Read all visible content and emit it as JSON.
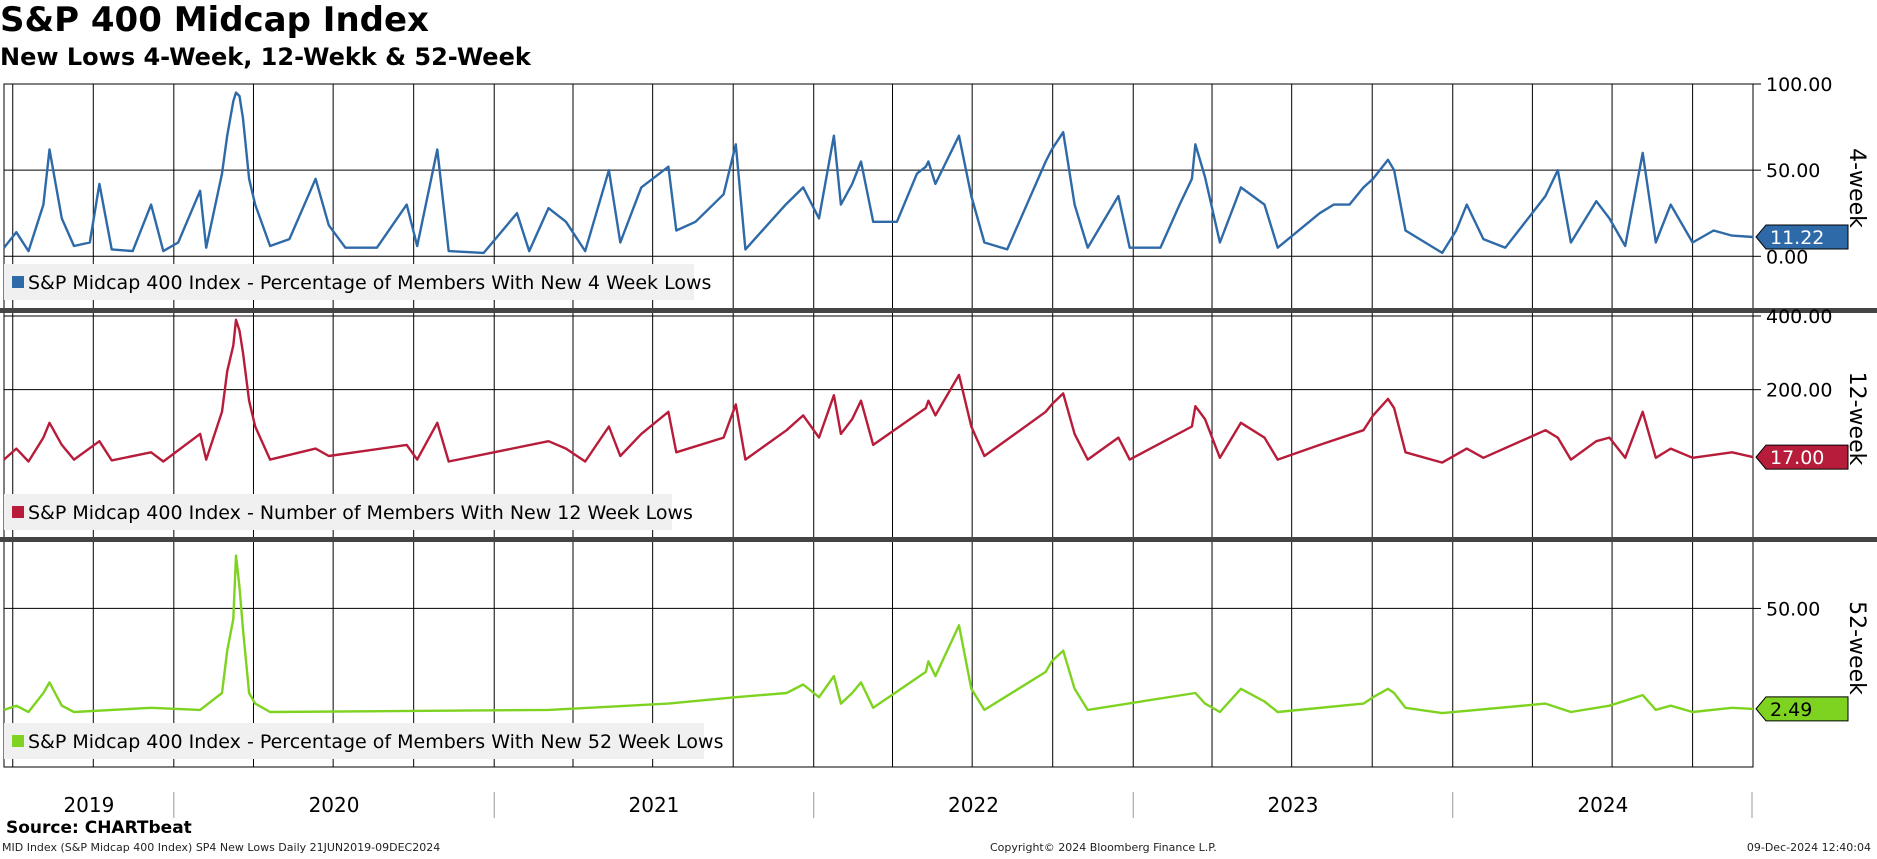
{
  "title": "S&P 400 Midcap Index",
  "subtitle": "New Lows 4-Week, 12-Wekk & 52-Week",
  "footer": {
    "source": "Source: CHARTbeat",
    "description": "MID Index (S&P Midcap 400 Index) SP4 New Lows  Daily 21JUN2019-09DEC2024",
    "copyright": "Copyright© 2024 Bloomberg Finance L.P.",
    "timestamp": "09-Dec-2024 12:40:04"
  },
  "chart_data": {
    "type": "line",
    "x_domain": [
      "2019-06-21",
      "2024-12-09"
    ],
    "year_labels": [
      "2019",
      "2020",
      "2021",
      "2022",
      "2023",
      "2024"
    ],
    "panels": [
      {
        "name": "4-week",
        "axis_title": "4-week",
        "legend": "S&P Midcap 400 Index  - Percentage of Members With New 4 Week Lows",
        "color": "#2e6aa8",
        "ylim": [
          -30,
          100
        ],
        "ticks": [
          {
            "v": 100,
            "label": "100.00"
          },
          {
            "v": 50,
            "label": "50.00"
          },
          {
            "v": 0,
            "label": "0.00"
          }
        ],
        "last_value": 11.22,
        "last_label": "11.22",
        "points": [
          [
            "2019-06-21",
            5
          ],
          [
            "2019-07-05",
            14
          ],
          [
            "2019-07-19",
            3
          ],
          [
            "2019-08-05",
            30
          ],
          [
            "2019-08-12",
            62
          ],
          [
            "2019-08-26",
            22
          ],
          [
            "2019-09-09",
            6
          ],
          [
            "2019-09-27",
            8
          ],
          [
            "2019-10-08",
            42
          ],
          [
            "2019-10-22",
            4
          ],
          [
            "2019-11-15",
            3
          ],
          [
            "2019-12-06",
            30
          ],
          [
            "2019-12-20",
            3
          ],
          [
            "2020-01-06",
            8
          ],
          [
            "2020-01-31",
            38
          ],
          [
            "2020-02-07",
            5
          ],
          [
            "2020-02-25",
            48
          ],
          [
            "2020-03-02",
            70
          ],
          [
            "2020-03-09",
            90
          ],
          [
            "2020-03-12",
            95
          ],
          [
            "2020-03-16",
            93
          ],
          [
            "2020-03-20",
            80
          ],
          [
            "2020-03-27",
            45
          ],
          [
            "2020-04-03",
            30
          ],
          [
            "2020-04-20",
            6
          ],
          [
            "2020-05-12",
            10
          ],
          [
            "2020-06-11",
            45
          ],
          [
            "2020-06-26",
            18
          ],
          [
            "2020-07-15",
            5
          ],
          [
            "2020-08-20",
            5
          ],
          [
            "2020-09-23",
            30
          ],
          [
            "2020-10-05",
            6
          ],
          [
            "2020-10-28",
            62
          ],
          [
            "2020-11-10",
            3
          ],
          [
            "2020-12-20",
            2
          ],
          [
            "2021-01-27",
            25
          ],
          [
            "2021-02-10",
            3
          ],
          [
            "2021-03-04",
            28
          ],
          [
            "2021-03-24",
            20
          ],
          [
            "2021-04-15",
            3
          ],
          [
            "2021-05-12",
            50
          ],
          [
            "2021-05-25",
            8
          ],
          [
            "2021-06-18",
            40
          ],
          [
            "2021-07-19",
            52
          ],
          [
            "2021-07-28",
            15
          ],
          [
            "2021-08-19",
            20
          ],
          [
            "2021-09-20",
            36
          ],
          [
            "2021-10-04",
            65
          ],
          [
            "2021-10-15",
            4
          ],
          [
            "2021-11-30",
            30
          ],
          [
            "2021-12-20",
            40
          ],
          [
            "2022-01-07",
            22
          ],
          [
            "2022-01-24",
            70
          ],
          [
            "2022-02-01",
            30
          ],
          [
            "2022-02-14",
            42
          ],
          [
            "2022-02-24",
            55
          ],
          [
            "2022-03-10",
            20
          ],
          [
            "2022-04-06",
            20
          ],
          [
            "2022-04-29",
            48
          ],
          [
            "2022-05-09",
            52
          ],
          [
            "2022-05-12",
            55
          ],
          [
            "2022-05-20",
            42
          ],
          [
            "2022-06-16",
            70
          ],
          [
            "2022-06-30",
            35
          ],
          [
            "2022-07-15",
            8
          ],
          [
            "2022-08-10",
            4
          ],
          [
            "2022-09-23",
            55
          ],
          [
            "2022-09-30",
            62
          ],
          [
            "2022-10-13",
            72
          ],
          [
            "2022-10-26",
            30
          ],
          [
            "2022-11-10",
            5
          ],
          [
            "2022-12-15",
            35
          ],
          [
            "2022-12-28",
            5
          ],
          [
            "2023-02-01",
            5
          ],
          [
            "2023-02-23",
            30
          ],
          [
            "2023-03-09",
            45
          ],
          [
            "2023-03-13",
            65
          ],
          [
            "2023-03-24",
            46
          ],
          [
            "2023-04-10",
            8
          ],
          [
            "2023-05-04",
            40
          ],
          [
            "2023-05-31",
            30
          ],
          [
            "2023-06-15",
            5
          ],
          [
            "2023-08-02",
            25
          ],
          [
            "2023-08-18",
            30
          ],
          [
            "2023-09-05",
            30
          ],
          [
            "2023-09-21",
            40
          ],
          [
            "2023-10-02",
            45
          ],
          [
            "2023-10-19",
            56
          ],
          [
            "2023-10-26",
            50
          ],
          [
            "2023-11-08",
            15
          ],
          [
            "2023-12-20",
            2
          ],
          [
            "2024-01-05",
            15
          ],
          [
            "2024-01-17",
            30
          ],
          [
            "2024-02-05",
            10
          ],
          [
            "2024-03-01",
            5
          ],
          [
            "2024-04-16",
            35
          ],
          [
            "2024-04-30",
            50
          ],
          [
            "2024-05-15",
            8
          ],
          [
            "2024-06-13",
            32
          ],
          [
            "2024-06-28",
            22
          ],
          [
            "2024-07-16",
            6
          ],
          [
            "2024-08-05",
            60
          ],
          [
            "2024-08-20",
            8
          ],
          [
            "2024-09-06",
            30
          ],
          [
            "2024-10-01",
            8
          ],
          [
            "2024-10-25",
            15
          ],
          [
            "2024-11-15",
            12
          ],
          [
            "2024-12-09",
            11.22
          ]
        ]
      },
      {
        "name": "12-week",
        "axis_title": "12-week",
        "legend": "S&P Midcap 400 Index  - Number of Members With New 12 Week Lows",
        "color": "#b71c3a",
        "ylim": [
          -200,
          400
        ],
        "ticks": [
          {
            "v": 400,
            "label": "400.00"
          },
          {
            "v": 200,
            "label": "200.00"
          }
        ],
        "last_value": 17,
        "last_label": "17.00",
        "points": [
          [
            "2019-06-21",
            10
          ],
          [
            "2019-07-05",
            40
          ],
          [
            "2019-07-19",
            5
          ],
          [
            "2019-08-05",
            70
          ],
          [
            "2019-08-12",
            110
          ],
          [
            "2019-08-26",
            50
          ],
          [
            "2019-09-09",
            10
          ],
          [
            "2019-10-08",
            60
          ],
          [
            "2019-10-22",
            8
          ],
          [
            "2019-12-06",
            30
          ],
          [
            "2019-12-20",
            5
          ],
          [
            "2020-01-31",
            80
          ],
          [
            "2020-02-07",
            10
          ],
          [
            "2020-02-25",
            140
          ],
          [
            "2020-03-02",
            250
          ],
          [
            "2020-03-09",
            320
          ],
          [
            "2020-03-12",
            390
          ],
          [
            "2020-03-16",
            360
          ],
          [
            "2020-03-20",
            300
          ],
          [
            "2020-03-27",
            170
          ],
          [
            "2020-04-03",
            100
          ],
          [
            "2020-04-20",
            10
          ],
          [
            "2020-06-11",
            40
          ],
          [
            "2020-06-26",
            20
          ],
          [
            "2020-09-23",
            50
          ],
          [
            "2020-10-05",
            10
          ],
          [
            "2020-10-28",
            110
          ],
          [
            "2020-11-10",
            5
          ],
          [
            "2021-03-04",
            60
          ],
          [
            "2021-03-24",
            40
          ],
          [
            "2021-04-15",
            5
          ],
          [
            "2021-05-12",
            100
          ],
          [
            "2021-05-25",
            20
          ],
          [
            "2021-06-18",
            80
          ],
          [
            "2021-07-19",
            140
          ],
          [
            "2021-07-28",
            30
          ],
          [
            "2021-09-20",
            70
          ],
          [
            "2021-10-04",
            160
          ],
          [
            "2021-10-15",
            10
          ],
          [
            "2021-12-01",
            90
          ],
          [
            "2021-12-20",
            130
          ],
          [
            "2022-01-07",
            70
          ],
          [
            "2022-01-24",
            185
          ],
          [
            "2022-02-01",
            80
          ],
          [
            "2022-02-14",
            120
          ],
          [
            "2022-02-24",
            170
          ],
          [
            "2022-03-10",
            50
          ],
          [
            "2022-05-09",
            150
          ],
          [
            "2022-05-12",
            170
          ],
          [
            "2022-05-20",
            130
          ],
          [
            "2022-06-16",
            240
          ],
          [
            "2022-06-30",
            100
          ],
          [
            "2022-07-15",
            20
          ],
          [
            "2022-09-23",
            140
          ],
          [
            "2022-09-30",
            160
          ],
          [
            "2022-10-13",
            190
          ],
          [
            "2022-10-26",
            80
          ],
          [
            "2022-11-10",
            10
          ],
          [
            "2022-12-15",
            70
          ],
          [
            "2022-12-28",
            10
          ],
          [
            "2023-03-09",
            100
          ],
          [
            "2023-03-13",
            155
          ],
          [
            "2023-03-24",
            120
          ],
          [
            "2023-04-10",
            15
          ],
          [
            "2023-05-04",
            110
          ],
          [
            "2023-05-31",
            70
          ],
          [
            "2023-06-15",
            10
          ],
          [
            "2023-08-02",
            50
          ],
          [
            "2023-09-21",
            90
          ],
          [
            "2023-10-02",
            130
          ],
          [
            "2023-10-19",
            175
          ],
          [
            "2023-10-26",
            150
          ],
          [
            "2023-11-08",
            30
          ],
          [
            "2023-12-20",
            2
          ],
          [
            "2024-01-17",
            40
          ],
          [
            "2024-02-05",
            15
          ],
          [
            "2024-04-16",
            90
          ],
          [
            "2024-04-30",
            70
          ],
          [
            "2024-05-15",
            10
          ],
          [
            "2024-06-13",
            60
          ],
          [
            "2024-06-28",
            70
          ],
          [
            "2024-07-16",
            15
          ],
          [
            "2024-08-05",
            140
          ],
          [
            "2024-08-20",
            15
          ],
          [
            "2024-09-06",
            40
          ],
          [
            "2024-10-01",
            15
          ],
          [
            "2024-11-15",
            30
          ],
          [
            "2024-12-09",
            17
          ]
        ]
      },
      {
        "name": "52-week",
        "axis_title": "52-week",
        "legend": "S&P Midcap 400 Index  - Percentage of Members With New 52 Week Lows",
        "color": "#7ed321",
        "ylim": [
          -25,
          80
        ],
        "ticks": [
          {
            "v": 50,
            "label": "50.00"
          }
        ],
        "last_value": 2.49,
        "last_label": "2.49",
        "points": [
          [
            "2019-06-21",
            2
          ],
          [
            "2019-07-05",
            4
          ],
          [
            "2019-07-19",
            1
          ],
          [
            "2019-08-05",
            10
          ],
          [
            "2019-08-12",
            15
          ],
          [
            "2019-08-26",
            4
          ],
          [
            "2019-09-09",
            1
          ],
          [
            "2019-12-06",
            3
          ],
          [
            "2020-01-31",
            2
          ],
          [
            "2020-02-25",
            10
          ],
          [
            "2020-03-02",
            30
          ],
          [
            "2020-03-09",
            45
          ],
          [
            "2020-03-12",
            75
          ],
          [
            "2020-03-16",
            60
          ],
          [
            "2020-03-20",
            40
          ],
          [
            "2020-03-27",
            10
          ],
          [
            "2020-04-03",
            5
          ],
          [
            "2020-04-20",
            1
          ],
          [
            "2021-03-04",
            2
          ],
          [
            "2021-07-19",
            5
          ],
          [
            "2021-10-04",
            8
          ],
          [
            "2021-12-01",
            10
          ],
          [
            "2021-12-20",
            14
          ],
          [
            "2022-01-07",
            8
          ],
          [
            "2022-01-24",
            18
          ],
          [
            "2022-02-01",
            5
          ],
          [
            "2022-02-14",
            10
          ],
          [
            "2022-02-24",
            15
          ],
          [
            "2022-03-10",
            3
          ],
          [
            "2022-05-09",
            20
          ],
          [
            "2022-05-12",
            25
          ],
          [
            "2022-05-20",
            18
          ],
          [
            "2022-06-16",
            42
          ],
          [
            "2022-06-30",
            12
          ],
          [
            "2022-07-15",
            2
          ],
          [
            "2022-09-23",
            20
          ],
          [
            "2022-09-30",
            25
          ],
          [
            "2022-10-13",
            30
          ],
          [
            "2022-10-26",
            12
          ],
          [
            "2022-11-10",
            2
          ],
          [
            "2023-03-13",
            10
          ],
          [
            "2023-03-24",
            5
          ],
          [
            "2023-04-10",
            1
          ],
          [
            "2023-05-04",
            12
          ],
          [
            "2023-05-31",
            6
          ],
          [
            "2023-06-15",
            1
          ],
          [
            "2023-09-21",
            5
          ],
          [
            "2023-10-02",
            8
          ],
          [
            "2023-10-19",
            12
          ],
          [
            "2023-10-26",
            10
          ],
          [
            "2023-11-08",
            3
          ],
          [
            "2023-12-20",
            0.5
          ],
          [
            "2024-04-16",
            5
          ],
          [
            "2024-05-15",
            1
          ],
          [
            "2024-06-28",
            4
          ],
          [
            "2024-08-05",
            9
          ],
          [
            "2024-08-20",
            2
          ],
          [
            "2024-09-06",
            4
          ],
          [
            "2024-10-01",
            1
          ],
          [
            "2024-11-15",
            3
          ],
          [
            "2024-12-09",
            2.49
          ]
        ]
      }
    ]
  }
}
